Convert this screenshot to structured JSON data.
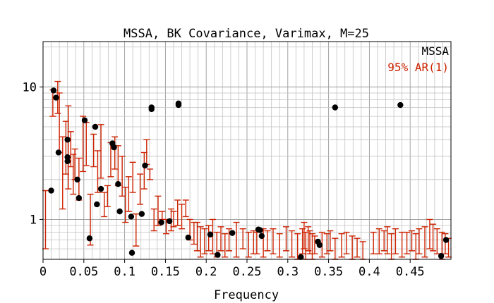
{
  "chart_data": {
    "type": "scatter",
    "title": "MSSA, BK Covariance, Varimax, M=25",
    "xlabel": "Frequency",
    "ylabel": "",
    "xlim": [
      0,
      0.5
    ],
    "ylim": [
      0.5,
      22
    ],
    "yscale": "log",
    "grid": true,
    "legend_position": "top-right",
    "x_ticks": [
      {
        "value": 0,
        "label": "0"
      },
      {
        "value": 0.05,
        "label": "0.05"
      },
      {
        "value": 0.1,
        "label": "0.1"
      },
      {
        "value": 0.15,
        "label": "0.15"
      },
      {
        "value": 0.2,
        "label": "0.2"
      },
      {
        "value": 0.25,
        "label": "0.25"
      },
      {
        "value": 0.3,
        "label": "0.3"
      },
      {
        "value": 0.35,
        "label": "0.35"
      },
      {
        "value": 0.4,
        "label": "0.4"
      },
      {
        "value": 0.45,
        "label": "0.45"
      }
    ],
    "y_ticks": [
      {
        "value": 1,
        "label": "1"
      },
      {
        "value": 10,
        "label": "10"
      }
    ],
    "colors": {
      "points": "#000000",
      "errorbars": "#cc2200"
    },
    "series": [
      {
        "name": "MSSA",
        "color": "#000000",
        "points": [
          [
            0.013,
            9.4
          ],
          [
            0.016,
            8.3
          ],
          [
            0.01,
            1.65
          ],
          [
            0.019,
            3.2
          ],
          [
            0.03,
            4.0
          ],
          [
            0.03,
            2.95
          ],
          [
            0.03,
            2.75
          ],
          [
            0.042,
            2.0
          ],
          [
            0.044,
            1.45
          ],
          [
            0.051,
            5.6
          ],
          [
            0.057,
            0.72
          ],
          [
            0.064,
            5.0
          ],
          [
            0.066,
            1.3
          ],
          [
            0.071,
            1.7
          ],
          [
            0.085,
            3.75
          ],
          [
            0.087,
            3.5
          ],
          [
            0.092,
            1.85
          ],
          [
            0.094,
            1.15
          ],
          [
            0.108,
            1.05
          ],
          [
            0.109,
            0.56
          ],
          [
            0.121,
            1.1
          ],
          [
            0.125,
            2.55
          ],
          [
            0.133,
            7.0
          ],
          [
            0.133,
            6.8
          ],
          [
            0.145,
            0.95
          ],
          [
            0.155,
            0.97
          ],
          [
            0.166,
            7.5
          ],
          [
            0.166,
            7.3
          ],
          [
            0.178,
            0.73
          ],
          [
            0.205,
            0.77
          ],
          [
            0.214,
            0.54
          ],
          [
            0.232,
            0.79
          ],
          [
            0.264,
            0.84
          ],
          [
            0.266,
            0.83
          ],
          [
            0.268,
            0.75
          ],
          [
            0.316,
            0.52
          ],
          [
            0.337,
            0.68
          ],
          [
            0.339,
            0.64
          ],
          [
            0.358,
            7.0
          ],
          [
            0.438,
            7.3
          ],
          [
            0.488,
            0.53
          ],
          [
            0.494,
            0.7
          ]
        ]
      },
      {
        "name": "95% AR(1)",
        "color": "#cc2200",
        "bars": [
          [
            0.003,
            0.6,
            1.65
          ],
          [
            0.012,
            6.0,
            9.5
          ],
          [
            0.018,
            6.3,
            11.0
          ],
          [
            0.02,
            3.2,
            9.0
          ],
          [
            0.024,
            1.2,
            4.2
          ],
          [
            0.028,
            2.2,
            5.5
          ],
          [
            0.031,
            1.7,
            7.2
          ],
          [
            0.034,
            2.5,
            4.6
          ],
          [
            0.037,
            1.55,
            3.1
          ],
          [
            0.039,
            2.0,
            3.4
          ],
          [
            0.044,
            1.4,
            2.9
          ],
          [
            0.049,
            2.3,
            6.0
          ],
          [
            0.053,
            2.55,
            5.4
          ],
          [
            0.058,
            0.64,
            1.55
          ],
          [
            0.062,
            2.5,
            4.4
          ],
          [
            0.067,
            1.6,
            3.3
          ],
          [
            0.071,
            2.05,
            5.2
          ],
          [
            0.075,
            1.05,
            1.6
          ],
          [
            0.079,
            1.25,
            1.8
          ],
          [
            0.083,
            2.1,
            3.8
          ],
          [
            0.088,
            2.4,
            4.2
          ],
          [
            0.092,
            1.8,
            3.6
          ],
          [
            0.097,
            1.5,
            3.0
          ],
          [
            0.101,
            0.95,
            1.75
          ],
          [
            0.105,
            1.15,
            2.1
          ],
          [
            0.11,
            1.6,
            2.7
          ],
          [
            0.114,
            0.63,
            1.1
          ],
          [
            0.119,
            1.3,
            2.2
          ],
          [
            0.124,
            1.7,
            3.2
          ],
          [
            0.127,
            2.6,
            4.0
          ],
          [
            0.131,
            2.0,
            2.4
          ],
          [
            0.136,
            0.82,
            1.2
          ],
          [
            0.141,
            0.9,
            1.5
          ],
          [
            0.146,
            1.0,
            1.15
          ],
          [
            0.151,
            0.78,
            1.0
          ],
          [
            0.157,
            0.82,
            1.2
          ],
          [
            0.16,
            0.88,
            1.15
          ],
          [
            0.165,
            0.9,
            1.4
          ],
          [
            0.17,
            0.85,
            1.3
          ],
          [
            0.175,
            1.05,
            1.4
          ],
          [
            0.18,
            0.7,
            1.0
          ],
          [
            0.185,
            0.65,
            0.95
          ],
          [
            0.189,
            0.58,
            0.95
          ],
          [
            0.193,
            0.52,
            0.88
          ],
          [
            0.198,
            0.55,
            0.85
          ],
          [
            0.203,
            0.58,
            0.9
          ],
          [
            0.208,
            0.55,
            1.0
          ],
          [
            0.213,
            0.52,
            0.8
          ],
          [
            0.218,
            0.58,
            0.88
          ],
          [
            0.223,
            0.52,
            0.78
          ],
          [
            0.228,
            0.58,
            0.85
          ],
          [
            0.237,
            0.52,
            0.95
          ],
          [
            0.245,
            0.6,
            0.85
          ],
          [
            0.252,
            0.52,
            0.8
          ],
          [
            0.258,
            0.55,
            0.82
          ],
          [
            0.262,
            0.55,
            0.8
          ],
          [
            0.27,
            0.52,
            0.85
          ],
          [
            0.275,
            0.58,
            0.82
          ],
          [
            0.282,
            0.55,
            0.85
          ],
          [
            0.29,
            0.52,
            0.78
          ],
          [
            0.298,
            0.58,
            0.88
          ],
          [
            0.305,
            0.52,
            0.82
          ],
          [
            0.312,
            0.5,
            0.78
          ],
          [
            0.318,
            0.55,
            0.85
          ],
          [
            0.32,
            0.6,
            0.95
          ],
          [
            0.322,
            0.5,
            0.8
          ],
          [
            0.325,
            0.58,
            0.88
          ],
          [
            0.327,
            0.55,
            0.82
          ],
          [
            0.33,
            0.5,
            0.78
          ],
          [
            0.333,
            0.55,
            0.75
          ],
          [
            0.342,
            0.52,
            0.8
          ],
          [
            0.348,
            0.55,
            0.78
          ],
          [
            0.352,
            0.58,
            0.82
          ],
          [
            0.358,
            0.5,
            0.72
          ],
          [
            0.366,
            0.52,
            0.78
          ],
          [
            0.372,
            0.55,
            0.8
          ],
          [
            0.379,
            0.5,
            0.75
          ],
          [
            0.385,
            0.52,
            0.72
          ],
          [
            0.392,
            0.5,
            0.68
          ],
          [
            0.405,
            0.55,
            0.8
          ],
          [
            0.412,
            0.55,
            0.85
          ],
          [
            0.418,
            0.58,
            0.82
          ],
          [
            0.422,
            0.55,
            0.88
          ],
          [
            0.427,
            0.5,
            0.78
          ],
          [
            0.432,
            0.55,
            0.85
          ],
          [
            0.44,
            0.52,
            0.8
          ],
          [
            0.446,
            0.55,
            0.8
          ],
          [
            0.452,
            0.58,
            0.82
          ],
          [
            0.457,
            0.5,
            0.78
          ],
          [
            0.461,
            0.55,
            0.85
          ],
          [
            0.468,
            0.52,
            0.88
          ],
          [
            0.474,
            0.6,
            1.0
          ],
          [
            0.478,
            0.58,
            0.92
          ],
          [
            0.483,
            0.55,
            0.85
          ],
          [
            0.489,
            0.5,
            0.8
          ],
          [
            0.493,
            0.55,
            0.78
          ],
          [
            0.497,
            0.52,
            0.72
          ]
        ]
      }
    ]
  }
}
